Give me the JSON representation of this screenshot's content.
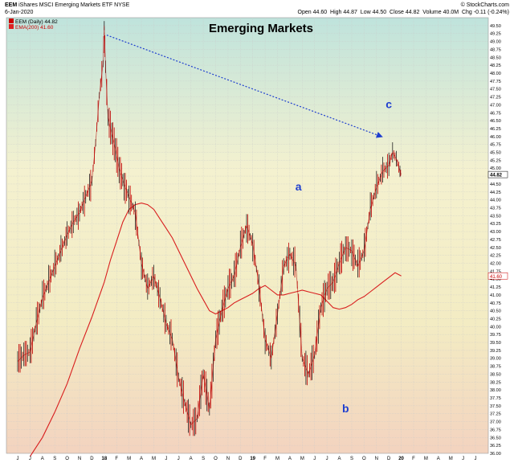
{
  "header": {
    "symbol": "EEM",
    "name": "iShares MSCI Emerging Markets ETF",
    "exchange": "NYSE",
    "source": "© StockCharts.com",
    "date": "6-Jan-2020",
    "quote": {
      "open_label": "Open",
      "open": "44.60",
      "high_label": "High",
      "high": "44.87",
      "low_label": "Low",
      "low": "44.50",
      "close_label": "Close",
      "close": "44.82",
      "volume_label": "Volume",
      "volume": "40.0M",
      "chg_label": "Chg",
      "chg": "-0.11 (-0.24%)"
    }
  },
  "legend": [
    {
      "label": "EEM (Daily) 44.82",
      "color": "#cc0000"
    },
    {
      "label": "EMA(200) 41.60",
      "color": "#dd2222"
    }
  ],
  "chart_data": {
    "type": "line",
    "title": "Emerging Markets",
    "ylim": [
      36.0,
      49.75
    ],
    "yticks": [
      36.0,
      36.25,
      36.5,
      36.75,
      37.0,
      37.25,
      37.5,
      37.75,
      38.0,
      38.25,
      38.5,
      38.75,
      39.0,
      39.25,
      39.5,
      39.75,
      40.0,
      40.25,
      40.5,
      40.75,
      41.0,
      41.25,
      41.5,
      41.75,
      42.0,
      42.25,
      42.5,
      42.75,
      43.0,
      43.25,
      43.5,
      43.75,
      44.0,
      44.25,
      44.5,
      44.75,
      45.0,
      45.25,
      45.5,
      45.75,
      46.0,
      46.25,
      46.5,
      46.75,
      47.0,
      47.25,
      47.5,
      47.75,
      48.0,
      48.25,
      48.5,
      48.75,
      49.0,
      49.25,
      49.5
    ],
    "ytick_labels": [
      "36.00",
      "36.25",
      "36.50",
      "36.75",
      "37.00",
      "37.25",
      "37.50",
      "37.75",
      "38.00",
      "38.25",
      "38.50",
      "38.75",
      "39.00",
      "39.25",
      "39.50",
      "39.75",
      "40.00",
      "40.25",
      "40.50",
      "40.75",
      "41.00",
      "41.25",
      "41.50",
      "41.75",
      "42.00",
      "42.25",
      "42.50",
      "42.75",
      "43.00",
      "43.25",
      "43.50",
      "43.75",
      "44.00",
      "44.25",
      "44.50",
      "44.75",
      "45.00",
      "45.25",
      "45.50",
      "45.75",
      "46.00",
      "46.25",
      "46.50",
      "46.75",
      "47.00",
      "47.25",
      "47.50",
      "47.75",
      "48.00",
      "48.25",
      "48.50",
      "48.75",
      "49.00",
      "49.25",
      "49.50"
    ],
    "x_months": [
      "J",
      "J",
      "A",
      "S",
      "O",
      "N",
      "D",
      "18",
      "F",
      "M",
      "A",
      "M",
      "J",
      "J",
      "A",
      "S",
      "O",
      "N",
      "D",
      "19",
      "F",
      "M",
      "A",
      "M",
      "J",
      "J",
      "A",
      "S",
      "O",
      "N",
      "D",
      "20",
      "F",
      "M",
      "A",
      "M",
      "J",
      "J"
    ],
    "xlim": [
      0,
      37
    ],
    "price_series": {
      "name": "EEM (Daily)",
      "x": [
        0,
        0.5,
        1,
        1.5,
        2,
        2.5,
        3,
        3.5,
        4,
        4.5,
        5,
        5.5,
        6,
        6.3,
        6.6,
        6.9,
        7.0,
        7.1,
        7.3,
        7.6,
        7.9,
        8.2,
        8.6,
        9,
        9.5,
        10,
        10.5,
        11,
        11.5,
        12,
        12.5,
        13,
        13.5,
        14,
        14.5,
        15,
        15.5,
        16,
        16.5,
        17,
        17.5,
        18,
        18.5,
        19,
        19.5,
        20,
        20.5,
        21,
        21.5,
        22,
        22.5,
        23,
        23.5,
        24,
        24.5,
        25,
        25.5,
        26,
        26.5,
        27,
        27.5,
        28,
        28.5,
        29,
        29.5,
        30,
        30.3,
        30.6,
        30.9,
        31.0
      ],
      "y": [
        38.9,
        39.1,
        39.2,
        40.1,
        40.9,
        41.4,
        41.9,
        42.4,
        42.9,
        43.3,
        43.6,
        44.1,
        44.6,
        45.8,
        47.3,
        48.3,
        49.5,
        48.2,
        46.6,
        46.1,
        45.6,
        45.0,
        44.5,
        44.1,
        43.6,
        42.0,
        41.2,
        41.6,
        40.9,
        40.1,
        39.6,
        38.4,
        37.6,
        36.9,
        37.1,
        38.5,
        37.4,
        39.6,
        40.5,
        41.2,
        41.6,
        42.5,
        43.2,
        42.6,
        41.3,
        39.6,
        39.0,
        40.4,
        41.9,
        42.3,
        41.9,
        39.0,
        38.5,
        39.1,
        40.6,
        41.2,
        41.4,
        42.0,
        42.5,
        42.4,
        41.9,
        42.4,
        43.7,
        44.4,
        44.9,
        45.1,
        45.5,
        45.3,
        44.9,
        44.8
      ]
    },
    "ema_series": {
      "name": "EMA(200)",
      "x": [
        1,
        2,
        3,
        4,
        5,
        6,
        7,
        7.5,
        8,
        8.5,
        9,
        9.5,
        10,
        10.5,
        11,
        11.5,
        12,
        12.5,
        13,
        13.5,
        14,
        14.5,
        15,
        15.5,
        16,
        16.5,
        17,
        17.5,
        18,
        18.5,
        19,
        19.5,
        20,
        20.5,
        21,
        21.5,
        22,
        22.5,
        23,
        23.5,
        24,
        24.5,
        25,
        25.5,
        26,
        26.5,
        27,
        27.5,
        28,
        28.5,
        29,
        29.5,
        30,
        30.5,
        31
      ],
      "y": [
        35.9,
        36.5,
        37.3,
        38.2,
        39.3,
        40.3,
        41.4,
        42.1,
        42.7,
        43.3,
        43.7,
        43.85,
        43.9,
        43.85,
        43.7,
        43.4,
        43.1,
        42.8,
        42.4,
        42.0,
        41.6,
        41.2,
        40.85,
        40.5,
        40.4,
        40.5,
        40.6,
        40.75,
        40.85,
        40.95,
        41.05,
        41.2,
        41.3,
        41.15,
        41.0,
        41.0,
        41.05,
        41.1,
        41.15,
        41.1,
        41.05,
        41.0,
        40.8,
        40.6,
        40.55,
        40.6,
        40.7,
        40.85,
        40.95,
        41.1,
        41.25,
        41.4,
        41.55,
        41.7,
        41.6
      ]
    },
    "trendline": {
      "x": [
        7.2,
        29.4
      ],
      "y": [
        49.2,
        46.0
      ],
      "color": "#1f3fcf"
    },
    "annotations": [
      {
        "text": "a",
        "x": 22.7,
        "y": 44.3
      },
      {
        "text": "b",
        "x": 26.5,
        "y": 37.3
      },
      {
        "text": "c",
        "x": 30.0,
        "y": 46.9
      }
    ],
    "last_price_label": "44.82",
    "ema_price_label": "41.60",
    "grid": true
  }
}
